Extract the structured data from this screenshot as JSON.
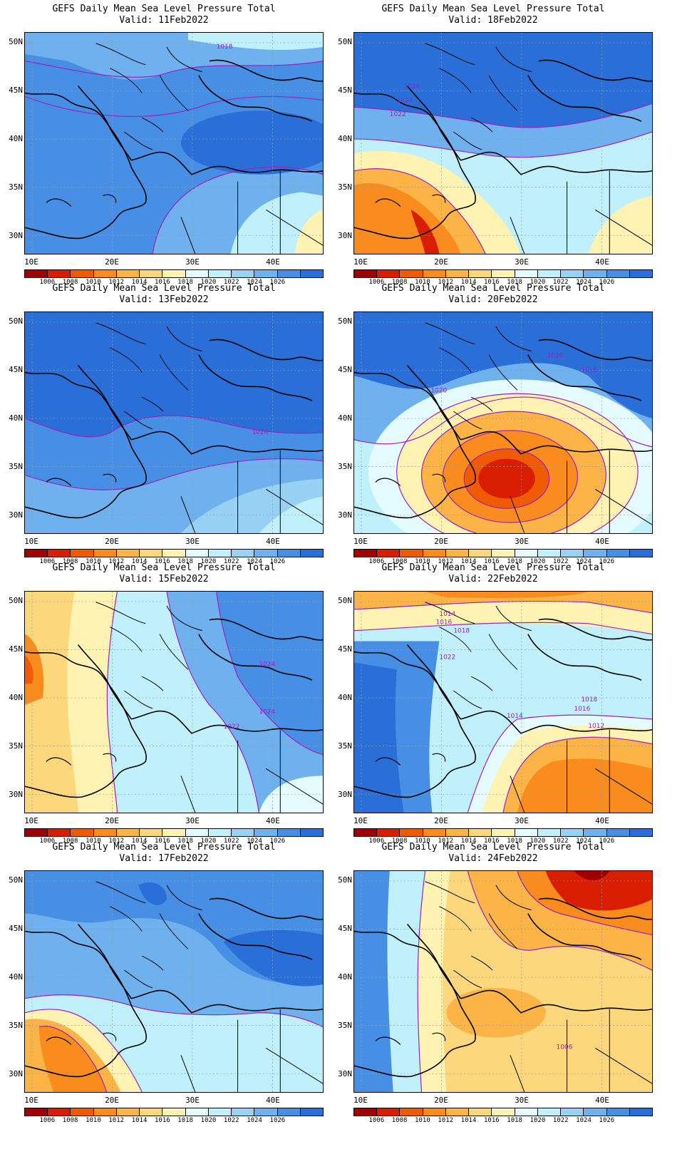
{
  "panels": [
    {
      "title": "GEFS Daily Mean Sea Level Pressure Total",
      "valid": "Valid: 11Feb2022",
      "scene": "blue-high-east",
      "contour_labels": [
        "1018"
      ]
    },
    {
      "title": "GEFS Daily Mean Sea Level Pressure Total",
      "valid": "Valid: 18Feb2022",
      "scene": "low-southwest",
      "contour_labels": [
        "1026",
        "1024",
        "1022"
      ]
    },
    {
      "title": "GEFS Daily Mean Sea Level Pressure Total",
      "valid": "Valid: 13Feb2022",
      "scene": "blue-broad",
      "contour_labels": [
        "1026"
      ]
    },
    {
      "title": "GEFS Daily Mean Sea Level Pressure Total",
      "valid": "Valid: 20Feb2022",
      "scene": "low-center",
      "contour_labels": [
        "1020",
        "1018",
        "1020"
      ]
    },
    {
      "title": "GEFS Daily Mean Sea Level Pressure Total",
      "valid": "Valid: 15Feb2022",
      "scene": "mixed-west",
      "contour_labels": [
        "1024",
        "1024",
        "1022"
      ]
    },
    {
      "title": "GEFS Daily Mean Sea Level Pressure Total",
      "valid": "Valid: 22Feb2022",
      "scene": "low-north-east",
      "contour_labels": [
        "1014",
        "1016",
        "1018",
        "1022",
        "1018",
        "1016",
        "1014",
        "1012"
      ]
    },
    {
      "title": "GEFS Daily Mean Sea Level Pressure Total",
      "valid": "Valid: 17Feb2022",
      "scene": "low-southwest-blue",
      "contour_labels": []
    },
    {
      "title": "GEFS Daily Mean Sea Level Pressure Total",
      "valid": "Valid: 24Feb2022",
      "scene": "warm-north",
      "contour_labels": [
        "1006"
      ]
    }
  ],
  "axes": {
    "y_ticks": [
      "50N",
      "45N",
      "40N",
      "35N",
      "30N"
    ],
    "x_ticks": [
      "10E",
      "20E",
      "30E",
      "40E"
    ]
  },
  "colorbar": {
    "colors": [
      "#a00000",
      "#d81d00",
      "#f05a00",
      "#fa8c1e",
      "#fcb446",
      "#fdd77c",
      "#fff3b4",
      "#e4fcff",
      "#bff0fc",
      "#97d2f5",
      "#6eb1ee",
      "#468fe4",
      "#2a6ed8"
    ],
    "labels": [
      "1006",
      "1008",
      "1010",
      "1012",
      "1014",
      "1016",
      "1018",
      "1020",
      "1022",
      "1024",
      "1026"
    ]
  }
}
